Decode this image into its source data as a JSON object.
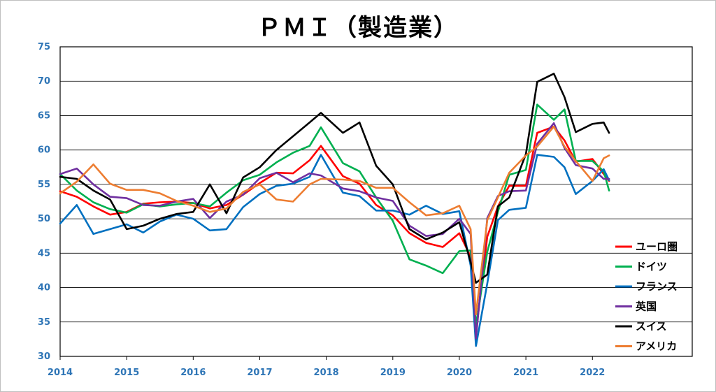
{
  "chart_data": {
    "type": "line",
    "title": "ＰＭＩ（製造業）",
    "xlabel": "",
    "ylabel": "",
    "ylim": [
      30,
      75
    ],
    "yticks": [
      30,
      35,
      40,
      45,
      50,
      55,
      60,
      65,
      70,
      75
    ],
    "xticks": [
      "2014",
      "2015",
      "2016",
      "2017",
      "2018",
      "2019",
      "2020",
      "2021",
      "2022"
    ],
    "x_start": 2014.0,
    "x_end": 2023.5,
    "legend_position": "bottom-right",
    "grid": "horizontal",
    "series": [
      {
        "name": "ユーロ圏",
        "color": "#ff0000",
        "x": [
          2014.0,
          2014.25,
          2014.5,
          2014.75,
          2015.0,
          2015.25,
          2015.5,
          2015.75,
          2016.0,
          2016.25,
          2016.5,
          2016.75,
          2017.0,
          2017.25,
          2017.5,
          2017.75,
          2017.92,
          2018.25,
          2018.5,
          2018.75,
          2019.0,
          2019.25,
          2019.5,
          2019.75,
          2020.0,
          2020.17,
          2020.25,
          2020.42,
          2020.58,
          2020.75,
          2021.0,
          2021.17,
          2021.42,
          2021.58,
          2021.75,
          2022.0,
          2022.17,
          2022.25
        ],
        "values": [
          54.0,
          53.2,
          51.8,
          50.6,
          51.0,
          52.2,
          52.4,
          52.5,
          52.3,
          51.5,
          52.0,
          53.5,
          55.2,
          56.7,
          56.6,
          58.5,
          60.6,
          56.2,
          55.1,
          52.0,
          50.5,
          47.9,
          46.5,
          45.9,
          47.9,
          44.5,
          33.4,
          47.4,
          51.8,
          54.8,
          54.8,
          62.5,
          63.4,
          61.4,
          58.3,
          58.7,
          56.5,
          55.5
        ]
      },
      {
        "name": "ドイツ",
        "color": "#00b050",
        "x": [
          2014.0,
          2014.25,
          2014.5,
          2014.75,
          2015.0,
          2015.25,
          2015.5,
          2015.75,
          2016.0,
          2016.25,
          2016.5,
          2016.75,
          2017.0,
          2017.25,
          2017.5,
          2017.75,
          2017.92,
          2018.25,
          2018.5,
          2018.75,
          2019.0,
          2019.25,
          2019.5,
          2019.75,
          2020.0,
          2020.17,
          2020.25,
          2020.42,
          2020.58,
          2020.75,
          2021.0,
          2021.17,
          2021.42,
          2021.58,
          2021.75,
          2022.0,
          2022.17,
          2022.25
        ],
        "values": [
          56.5,
          54.1,
          52.4,
          51.4,
          50.9,
          52.1,
          51.8,
          52.1,
          52.3,
          51.8,
          53.8,
          55.6,
          56.4,
          58.2,
          59.6,
          60.6,
          63.3,
          58.1,
          56.9,
          53.1,
          49.7,
          44.1,
          43.2,
          42.1,
          45.3,
          45.4,
          34.5,
          45.2,
          51.0,
          56.4,
          57.1,
          66.6,
          64.4,
          65.9,
          58.4,
          58.4,
          56.9,
          54.1
        ]
      },
      {
        "name": "フランス",
        "color": "#0070c0",
        "x": [
          2014.0,
          2014.25,
          2014.5,
          2014.75,
          2015.0,
          2015.25,
          2015.5,
          2015.75,
          2016.0,
          2016.25,
          2016.5,
          2016.75,
          2017.0,
          2017.25,
          2017.5,
          2017.75,
          2017.92,
          2018.25,
          2018.5,
          2018.75,
          2019.0,
          2019.25,
          2019.5,
          2019.75,
          2020.0,
          2020.17,
          2020.25,
          2020.42,
          2020.58,
          2020.75,
          2021.0,
          2021.17,
          2021.42,
          2021.58,
          2021.75,
          2022.0,
          2022.17,
          2022.25
        ],
        "values": [
          49.3,
          52.0,
          47.8,
          48.5,
          49.2,
          48.0,
          49.6,
          50.6,
          50.0,
          48.3,
          48.5,
          51.7,
          53.6,
          54.8,
          55.1,
          56.1,
          59.3,
          53.8,
          53.3,
          51.2,
          51.2,
          50.6,
          51.9,
          50.7,
          51.1,
          43.2,
          31.5,
          40.6,
          49.8,
          51.3,
          51.6,
          59.3,
          59.0,
          57.5,
          53.6,
          55.5,
          57.2,
          55.6
        ]
      },
      {
        "name": "英国",
        "color": "#7030a0",
        "x": [
          2014.0,
          2014.25,
          2014.5,
          2014.75,
          2015.0,
          2015.25,
          2015.5,
          2015.75,
          2016.0,
          2016.25,
          2016.5,
          2016.75,
          2017.0,
          2017.25,
          2017.5,
          2017.75,
          2017.92,
          2018.25,
          2018.5,
          2018.75,
          2019.0,
          2019.25,
          2019.5,
          2019.75,
          2020.0,
          2020.17,
          2020.25,
          2020.42,
          2020.58,
          2020.75,
          2021.0,
          2021.17,
          2021.42,
          2021.58,
          2021.75,
          2022.0,
          2022.17,
          2022.25
        ],
        "values": [
          56.5,
          57.3,
          55.0,
          53.2,
          53.0,
          52.0,
          51.9,
          52.5,
          52.9,
          50.1,
          52.5,
          53.5,
          55.9,
          56.7,
          55.3,
          56.6,
          56.3,
          54.4,
          54.0,
          53.1,
          52.6,
          49.0,
          47.5,
          47.8,
          50.0,
          47.8,
          32.6,
          50.1,
          53.3,
          54.0,
          54.1,
          60.9,
          63.9,
          60.3,
          57.8,
          57.3,
          55.8,
          55.8
        ]
      },
      {
        "name": "スイス",
        "color": "#000000",
        "x": [
          2014.0,
          2014.25,
          2014.5,
          2014.75,
          2015.0,
          2015.25,
          2015.5,
          2015.75,
          2016.0,
          2016.25,
          2016.5,
          2016.75,
          2017.0,
          2017.25,
          2017.5,
          2017.75,
          2017.92,
          2018.25,
          2018.5,
          2018.75,
          2019.0,
          2019.25,
          2019.5,
          2019.75,
          2020.0,
          2020.17,
          2020.25,
          2020.42,
          2020.58,
          2020.75,
          2021.0,
          2021.17,
          2021.42,
          2021.58,
          2021.75,
          2022.0,
          2022.17,
          2022.25
        ],
        "values": [
          56.1,
          55.8,
          54.1,
          52.8,
          48.5,
          49.0,
          50.0,
          50.7,
          51.0,
          55.0,
          50.8,
          56.0,
          57.5,
          60.0,
          62.0,
          64.0,
          65.4,
          62.5,
          64.0,
          57.7,
          55.0,
          48.5,
          47.0,
          48.0,
          49.5,
          43.7,
          40.7,
          41.9,
          51.8,
          53.1,
          59.4,
          69.9,
          71.1,
          67.7,
          62.6,
          63.8,
          64.0,
          62.5
        ]
      },
      {
        "name": "アメリカ",
        "color": "#ed7d31",
        "x": [
          2014.0,
          2014.25,
          2014.5,
          2014.75,
          2015.0,
          2015.25,
          2015.5,
          2015.75,
          2016.0,
          2016.25,
          2016.5,
          2016.75,
          2017.0,
          2017.25,
          2017.5,
          2017.75,
          2017.92,
          2018.25,
          2018.5,
          2018.75,
          2019.0,
          2019.25,
          2019.5,
          2019.75,
          2020.0,
          2020.17,
          2020.25,
          2020.42,
          2020.58,
          2020.75,
          2021.0,
          2021.17,
          2021.42,
          2021.58,
          2021.75,
          2022.0,
          2022.17,
          2022.25
        ],
        "values": [
          53.7,
          55.4,
          57.9,
          55.1,
          54.2,
          54.2,
          53.7,
          52.6,
          51.9,
          51.0,
          51.5,
          53.9,
          55.0,
          52.8,
          52.5,
          55.0,
          55.8,
          55.7,
          55.5,
          54.5,
          54.5,
          52.4,
          50.5,
          50.8,
          51.9,
          48.5,
          36.1,
          49.8,
          53.1,
          56.7,
          59.2,
          60.5,
          63.4,
          60.5,
          58.4,
          55.5,
          58.8,
          59.2
        ]
      }
    ]
  }
}
